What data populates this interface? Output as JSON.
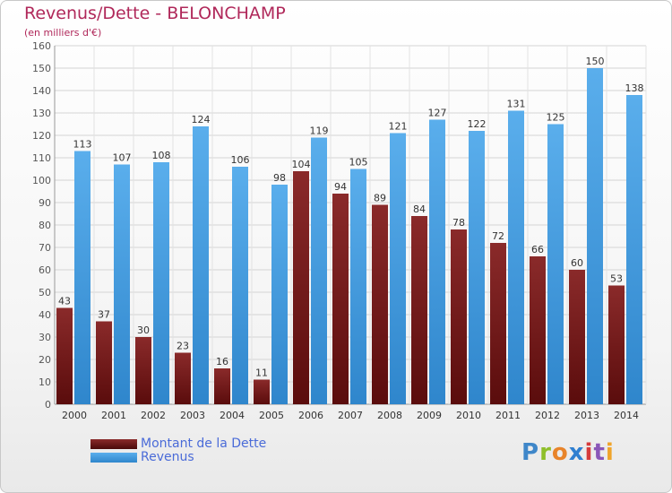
{
  "header": {
    "title": "Revenus/Dette - BELONCHAMP",
    "subtitle": "(en milliers d'€)"
  },
  "legend": {
    "debt_label": "Montant de la Dette",
    "revenue_label": "Revenus"
  },
  "logo": {
    "text": "Proxiti",
    "colors": [
      "#3f87c9",
      "#8fbf2a",
      "#e8842a",
      "#2f7fd0",
      "#d63b3b",
      "#8a57b8",
      "#f0a42a"
    ]
  },
  "colors": {
    "debt": "#7a1a1a",
    "revenue": "#3f9ae0",
    "title": "#b0285a",
    "legend_text": "#4a6bd8"
  },
  "chart_data": {
    "type": "bar",
    "title": "Revenus/Dette - BELONCHAMP",
    "ylabel": "(en milliers d'€)",
    "xlabel": "",
    "categories": [
      "2000",
      "2001",
      "2002",
      "2003",
      "2004",
      "2005",
      "2006",
      "2007",
      "2008",
      "2009",
      "2010",
      "2011",
      "2012",
      "2013",
      "2014"
    ],
    "series": [
      {
        "name": "Montant de la Dette",
        "values": [
          43,
          37,
          30,
          23,
          16,
          11,
          104,
          94,
          89,
          84,
          78,
          72,
          66,
          60,
          53
        ]
      },
      {
        "name": "Revenus",
        "values": [
          113,
          107,
          108,
          124,
          106,
          98,
          119,
          105,
          121,
          127,
          122,
          131,
          125,
          150,
          138
        ]
      }
    ],
    "ylim": [
      0,
      160
    ],
    "ytick_step": 10,
    "grid": true,
    "legend_position": "bottom-left"
  }
}
